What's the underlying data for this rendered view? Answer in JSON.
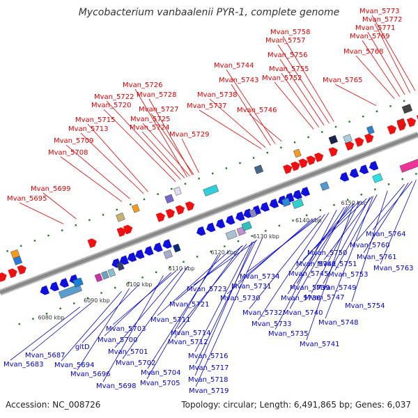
{
  "header": {
    "title": "Mycobacterium vanbaalenii PYR-1, complete genome"
  },
  "footer": {
    "accession": "Accession: NC_008726",
    "summary": "Topology: circular; Length: 6,491,865 bp; Genes: 6,037"
  },
  "colors": {
    "top_strand_labels": "#e00000",
    "bottom_strand_labels": "#0000cc",
    "backbone": "#888888",
    "tick": "#1a7a1a"
  },
  "scale_ticks": [
    "6080 kbp",
    "6090 kbp",
    "6100 kbp",
    "6110 kbp",
    "6120 kbp",
    "6130 kbp",
    "6140 kbp",
    "6150 kbp"
  ],
  "top_labels": [
    "Mvan_5773",
    "Mvan_5772",
    "Mvan_5771",
    "Mvan_5769",
    "Mvan_5768",
    "Mvan_5765",
    "Mvan_5758",
    "Mvan_5757",
    "Mvan_5756",
    "Mvan_5755",
    "Mvan_5752",
    "Mvan_5744",
    "Mvan_5743",
    "Mvan_5738",
    "Mvan_5737",
    "Mvan_5746",
    "Mvan_5726",
    "Mvan_5722",
    "Mvan_5728",
    "Mvan_5720",
    "Mvan_5727",
    "Mvan_5725",
    "Mvan_5724",
    "Mvan_5715",
    "Mvan_5713",
    "Mvan_5729",
    "Mvan_5709",
    "Mvan_5708",
    "Mvan_5699",
    "Mvan_5695"
  ],
  "bottom_labels": [
    "Mvan_5764",
    "Mvan_5760",
    "Mvan_5761",
    "Mvan_5763",
    "Mvan_5750",
    "Mvan_5742",
    "Mvan_5751",
    "Mvan_5745",
    "Mvan_5753",
    "Mvan_5734",
    "Mvan_5739",
    "Mvan_5749",
    "Mvan_5723",
    "Mvan_5731",
    "Mvan_5747",
    "Mvan_5730",
    "Mvan_5736",
    "Mvan_5754",
    "Mvan_5721",
    "Mvan_5732",
    "Mvan_5740",
    "Mvan_5711",
    "Mvan_5733",
    "Mvan_5748",
    "Mvan_5703",
    "Mvan_5714",
    "Mvan_5735",
    "Mvan_5700",
    "Mvan_5712",
    "Mvan_5741",
    "Mvan_5701",
    "Mvan_5687",
    "gltD",
    "Mvan_5716",
    "Mvan_5683",
    "Mvan_5694",
    "Mvan_5702",
    "Mvan_5717",
    "Mvan_5696",
    "Mvan_5704",
    "Mvan_5718",
    "Mvan_5705",
    "Mvan_5698",
    "Mvan_5719"
  ]
}
